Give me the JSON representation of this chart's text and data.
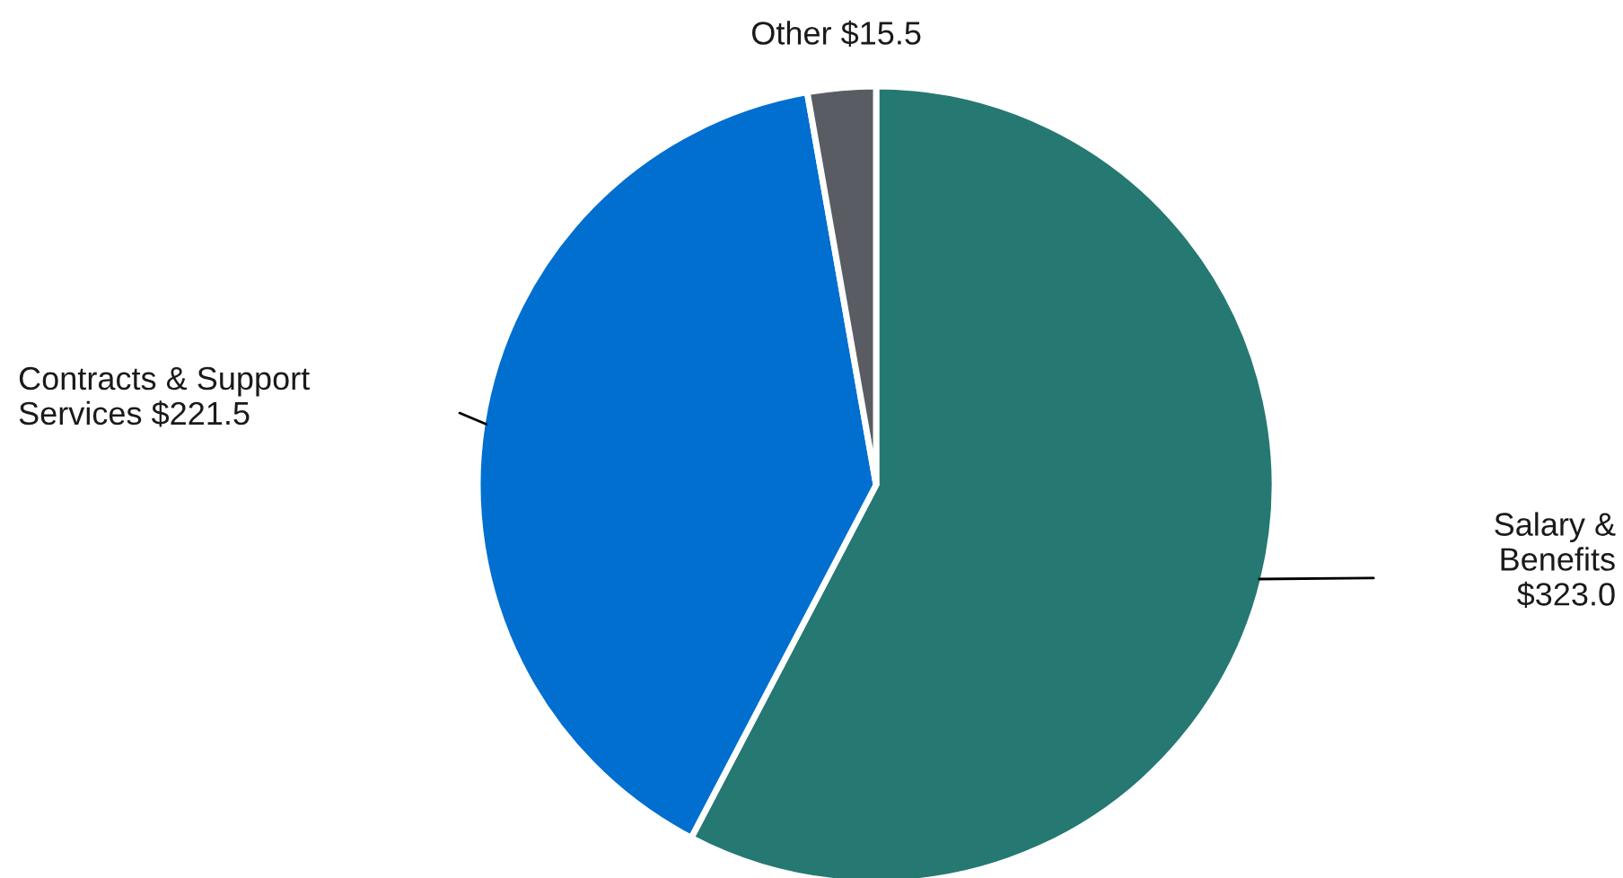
{
  "chart_data": {
    "type": "pie",
    "categories": [
      "Salary &\nBenefits",
      "Contracts & Support\nServices",
      "Other"
    ],
    "values": [
      323.0,
      221.5,
      15.5
    ],
    "value_labels": [
      "$323.0",
      "$221.5",
      "$15.5"
    ],
    "colors": [
      "#267872",
      "#006fcf",
      "#595d63"
    ]
  }
}
